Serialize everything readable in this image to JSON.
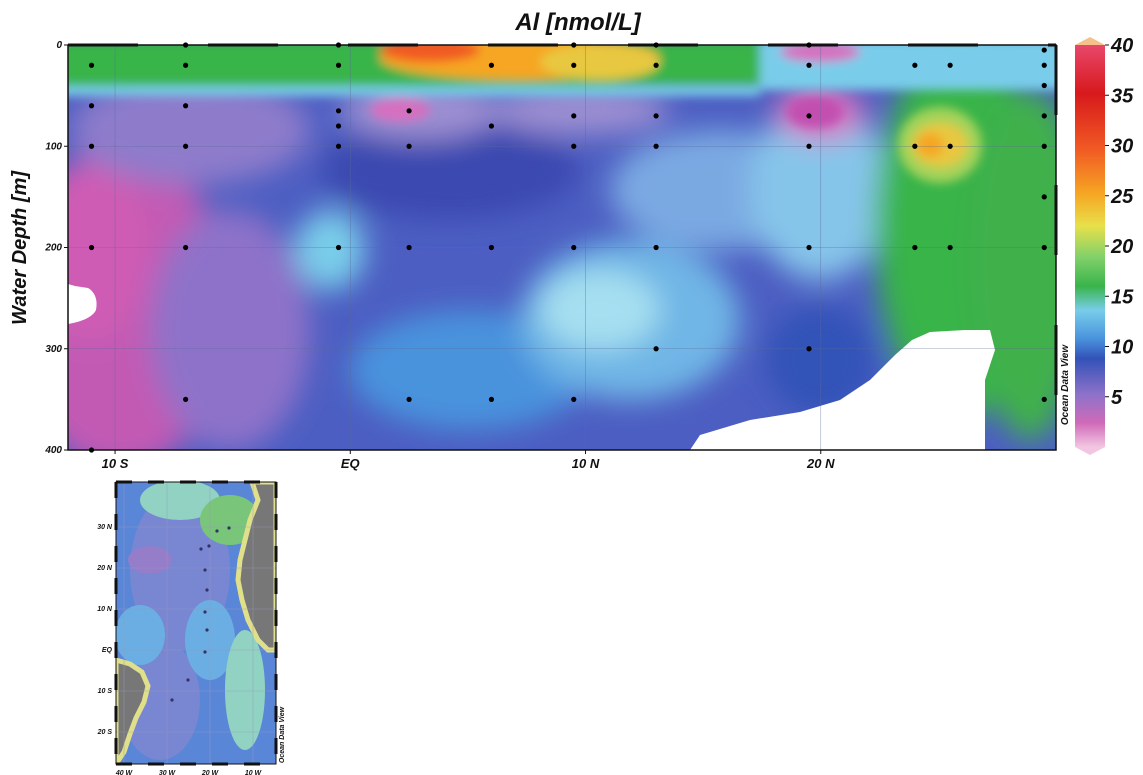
{
  "chart_data": [
    {
      "type": "heatmap",
      "title": "Al [nmol/L]",
      "ylabel": "Water Depth [m]",
      "xlabel": "",
      "x_ticks": [
        {
          "label": "10 S",
          "value": -10
        },
        {
          "label": "EQ",
          "value": 0
        },
        {
          "label": "10 N",
          "value": 10
        },
        {
          "label": "20 N",
          "value": 20
        }
      ],
      "xlim": [
        -12,
        30
      ],
      "ylim": [
        400,
        0
      ],
      "y_ticks": [
        0,
        100,
        200,
        300,
        400
      ],
      "grid": true,
      "colorbar": {
        "ticks": [
          5,
          10,
          15,
          20,
          25,
          30,
          35,
          40
        ],
        "range": [
          0,
          40
        ],
        "colors": [
          "#e8b0d6",
          "#c24fb0",
          "#8a6cc8",
          "#3352b8",
          "#4a93dd",
          "#79cdea",
          "#39b44a",
          "#7fd06a",
          "#e8d84a",
          "#f6a623",
          "#f15a24",
          "#d7191c"
        ]
      },
      "watermark": "Ocean Data View",
      "samples": [
        {
          "lat": -11,
          "depths": [
            20,
            60,
            100,
            200,
            400
          ]
        },
        {
          "lat": -7,
          "depths": [
            0,
            20,
            60,
            100,
            200,
            350
          ]
        },
        {
          "lat": -0.5,
          "depths": [
            0,
            20,
            65,
            80,
            100,
            200
          ]
        },
        {
          "lat": 2.5,
          "depths": [
            65,
            100,
            200,
            350
          ]
        },
        {
          "lat": 6,
          "depths": [
            20,
            80,
            200,
            350
          ]
        },
        {
          "lat": 9.5,
          "depths": [
            0,
            20,
            70,
            100,
            200,
            350
          ]
        },
        {
          "lat": 13,
          "depths": [
            0,
            20,
            70,
            100,
            200,
            300
          ]
        },
        {
          "lat": 19.5,
          "depths": [
            0,
            20,
            70,
            100,
            200,
            300
          ]
        },
        {
          "lat": 24,
          "depths": [
            20,
            100,
            200
          ]
        },
        {
          "lat": 25.5,
          "depths": [
            20,
            100,
            200
          ]
        },
        {
          "lat": 29.5,
          "depths": [
            5,
            20,
            40,
            70,
            100,
            150,
            200,
            350
          ]
        }
      ]
    },
    {
      "type": "map",
      "lon_ticks": [
        "40 W",
        "30 W",
        "20 W",
        "10 W"
      ],
      "lat_ticks": [
        "30 N",
        "20 N",
        "10 N",
        "EQ",
        "10 S",
        "20 S"
      ],
      "watermark": "Ocean Data View"
    }
  ]
}
